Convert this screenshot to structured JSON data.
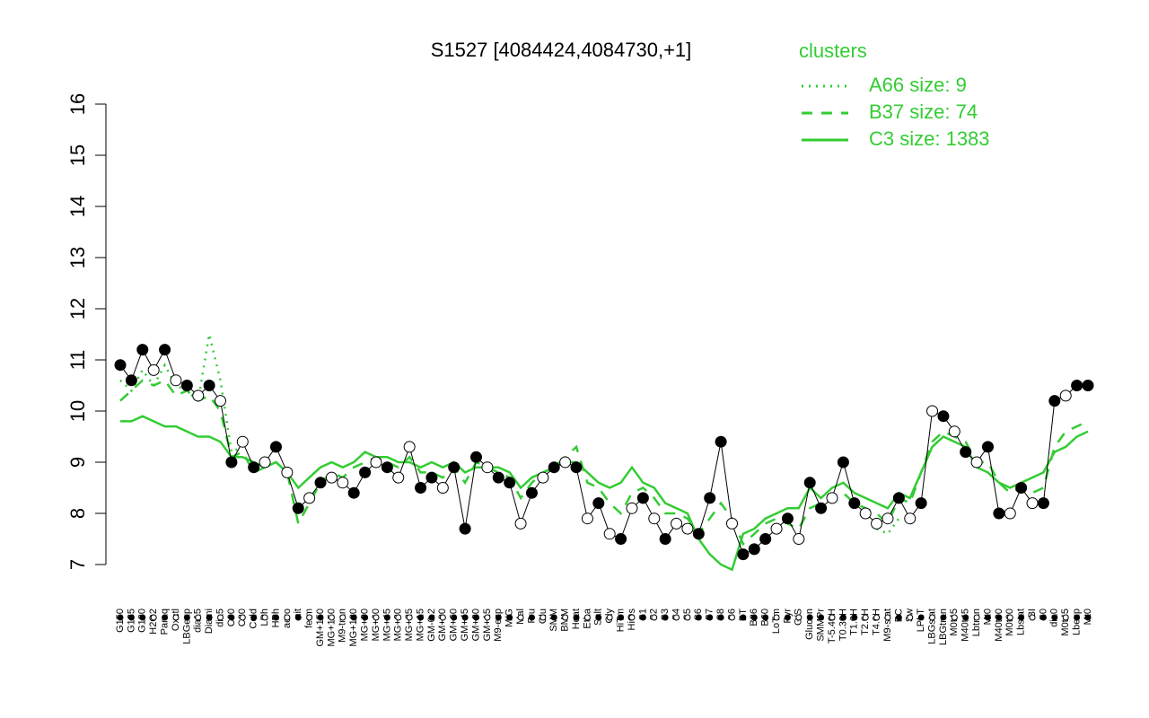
{
  "chart_data": {
    "type": "line",
    "title": "S1527 [4084424,4084730,+1]",
    "legend_title": "clusters",
    "ylim": [
      7,
      16
    ],
    "yticks": [
      7,
      8,
      9,
      10,
      11,
      12,
      13,
      14,
      15,
      16
    ],
    "point_color": "#000000",
    "categories": [
      "G150",
      "G135",
      "G180",
      "H2O2",
      "Paraq",
      "Oxctl",
      "LBGexp",
      "dia15",
      "Diami",
      "dia5",
      "C90",
      "C30",
      "Cold",
      "LPh",
      "HPh",
      "aero",
      "nit",
      "ferm",
      "GM+150",
      "MG+150",
      "M9-tran",
      "MG+120",
      "MG+90",
      "MG+60",
      "MG+45",
      "MG+30",
      "MG+25",
      "MG+15",
      "GM-0.2",
      "GM+90",
      "GM+60",
      "GM+45",
      "GM+30",
      "GM+15",
      "M9-exp",
      "M/G",
      "Mal",
      "Fru",
      "Glu",
      "SMM",
      "BMM",
      "Heat",
      "Etha",
      "Salt",
      "Gly",
      "HiTm",
      "HiOs",
      "S1",
      "S2",
      "S3",
      "S4",
      "S5",
      "S6",
      "S7",
      "S8",
      "S6",
      "BT",
      "B36",
      "B60",
      "LoTm",
      "Pyr",
      "G/S",
      "Glucon",
      "SMMPr",
      "T-5.40H",
      "T0.30H",
      "T1.0H",
      "T2.0H",
      "T4.0H",
      "M9-stat",
      "BC",
      "Sw",
      "LPhT",
      "LBGstat",
      "LBGtran",
      "M0t45",
      "M40t45",
      "Lbtran",
      "Mt0",
      "M40t90",
      "M0t90",
      "Lbstat",
      "BI",
      "S0",
      "dia0",
      "M0t45",
      "Lbexp",
      "Mt0"
    ],
    "values": [
      10.9,
      10.6,
      11.2,
      10.8,
      11.2,
      10.6,
      10.5,
      10.3,
      10.5,
      10.2,
      9.0,
      9.4,
      8.9,
      9.0,
      9.3,
      8.8,
      8.1,
      8.3,
      8.6,
      8.7,
      8.6,
      8.4,
      8.8,
      9.0,
      8.9,
      8.7,
      9.3,
      8.5,
      8.7,
      8.5,
      8.9,
      7.7,
      9.1,
      8.9,
      8.7,
      8.6,
      7.8,
      8.4,
      8.7,
      8.9,
      9.0,
      8.9,
      7.9,
      8.2,
      7.6,
      7.5,
      8.1,
      8.3,
      7.9,
      7.5,
      7.8,
      7.7,
      7.6,
      8.3,
      9.4,
      7.8,
      7.2,
      7.3,
      7.5,
      7.7,
      7.9,
      7.5,
      8.6,
      8.1,
      8.3,
      9.0,
      8.2,
      8.0,
      7.8,
      7.9,
      8.3,
      7.9,
      8.2,
      10.0,
      9.9,
      9.6,
      9.2,
      9.0,
      9.3,
      8.0,
      8.0,
      8.5,
      8.2,
      8.2,
      10.2,
      10.3,
      10.5,
      10.5
    ],
    "filled": [
      true,
      true,
      true,
      false,
      true,
      false,
      true,
      false,
      true,
      false,
      true,
      false,
      true,
      false,
      true,
      false,
      true,
      false,
      true,
      false,
      false,
      true,
      true,
      false,
      true,
      false,
      false,
      true,
      true,
      false,
      true,
      true,
      true,
      false,
      true,
      true,
      false,
      true,
      false,
      true,
      false,
      true,
      false,
      true,
      false,
      true,
      false,
      true,
      false,
      true,
      false,
      false,
      true,
      true,
      true,
      false,
      true,
      true,
      true,
      false,
      true,
      false,
      true,
      true,
      false,
      true,
      true,
      false,
      false,
      false,
      true,
      false,
      true,
      false,
      true,
      false,
      true,
      false,
      true,
      true,
      false,
      true,
      false,
      true,
      true,
      false,
      true,
      true
    ],
    "series": [
      {
        "name": "A66 size: 9",
        "style": "dotted",
        "color": "#33cc33",
        "values": [
          10.6,
          10.4,
          10.8,
          10.5,
          10.9,
          10.5,
          10.4,
          10.2,
          11.5,
          10.6,
          9.2,
          9.3,
          null,
          null,
          null,
          null,
          null,
          null,
          null,
          null,
          null,
          null,
          null,
          null,
          null,
          null,
          null,
          null,
          null,
          null,
          null,
          null,
          null,
          null,
          null,
          null,
          null,
          null,
          null,
          null,
          null,
          null,
          null,
          null,
          null,
          null,
          null,
          null,
          null,
          null,
          null,
          null,
          null,
          null,
          null,
          null,
          null,
          null,
          null,
          null,
          null,
          null,
          null,
          null,
          null,
          null,
          null,
          null,
          7.7,
          7.6,
          7.9,
          null,
          null,
          null,
          null,
          null,
          null,
          null,
          null,
          null,
          null,
          null,
          null,
          null,
          null,
          null,
          null,
          null
        ]
      },
      {
        "name": "B37 size: 74",
        "style": "dashed",
        "color": "#33cc33",
        "values": [
          10.2,
          10.4,
          10.6,
          10.5,
          10.6,
          10.3,
          10.4,
          10.2,
          10.3,
          10.0,
          9.1,
          9.2,
          8.8,
          8.9,
          9.0,
          8.8,
          7.8,
          8.2,
          8.6,
          8.8,
          8.7,
          8.9,
          9.0,
          9.1,
          9.0,
          8.9,
          9.1,
          8.8,
          8.8,
          8.7,
          8.9,
          8.6,
          9.0,
          8.9,
          8.8,
          8.7,
          8.3,
          8.6,
          8.8,
          8.9,
          9.1,
          9.3,
          8.6,
          8.5,
          8.2,
          8.0,
          8.4,
          8.5,
          8.3,
          8.0,
          8.0,
          7.9,
          7.6,
          7.9,
          8.2,
          7.9,
          7.4,
          7.6,
          7.8,
          7.9,
          7.8,
          7.7,
          8.1,
          8.2,
          8.3,
          8.4,
          8.2,
          8.1,
          8.0,
          7.8,
          8.3,
          8.2,
          8.8,
          9.4,
          9.6,
          9.5,
          9.4,
          9.0,
          9.0,
          8.6,
          8.4,
          8.5,
          8.4,
          8.5,
          9.3,
          9.6,
          9.7,
          9.8
        ]
      },
      {
        "name": "C3 size: 1383",
        "style": "solid",
        "color": "#33cc33",
        "values": [
          9.8,
          9.8,
          9.9,
          9.8,
          9.7,
          9.7,
          9.6,
          9.5,
          9.5,
          9.4,
          9.1,
          9.1,
          9.0,
          8.9,
          9.0,
          8.8,
          8.5,
          8.7,
          8.9,
          9.0,
          8.9,
          9.0,
          9.2,
          9.1,
          9.1,
          9.0,
          9.0,
          8.9,
          9.0,
          8.9,
          9.0,
          8.8,
          8.9,
          8.9,
          8.9,
          8.8,
          8.5,
          8.7,
          8.8,
          8.9,
          9.0,
          9.0,
          8.8,
          8.6,
          8.5,
          8.6,
          8.9,
          8.6,
          8.5,
          8.2,
          8.1,
          8.0,
          7.5,
          7.2,
          7.0,
          6.9,
          7.6,
          7.7,
          7.9,
          8.0,
          8.1,
          8.1,
          8.5,
          8.3,
          8.5,
          8.6,
          8.4,
          8.3,
          8.2,
          8.1,
          8.4,
          8.3,
          8.8,
          9.3,
          9.5,
          9.4,
          9.3,
          8.9,
          8.8,
          8.6,
          8.5,
          8.6,
          8.7,
          8.8,
          9.2,
          9.3,
          9.5,
          9.6
        ]
      }
    ]
  }
}
